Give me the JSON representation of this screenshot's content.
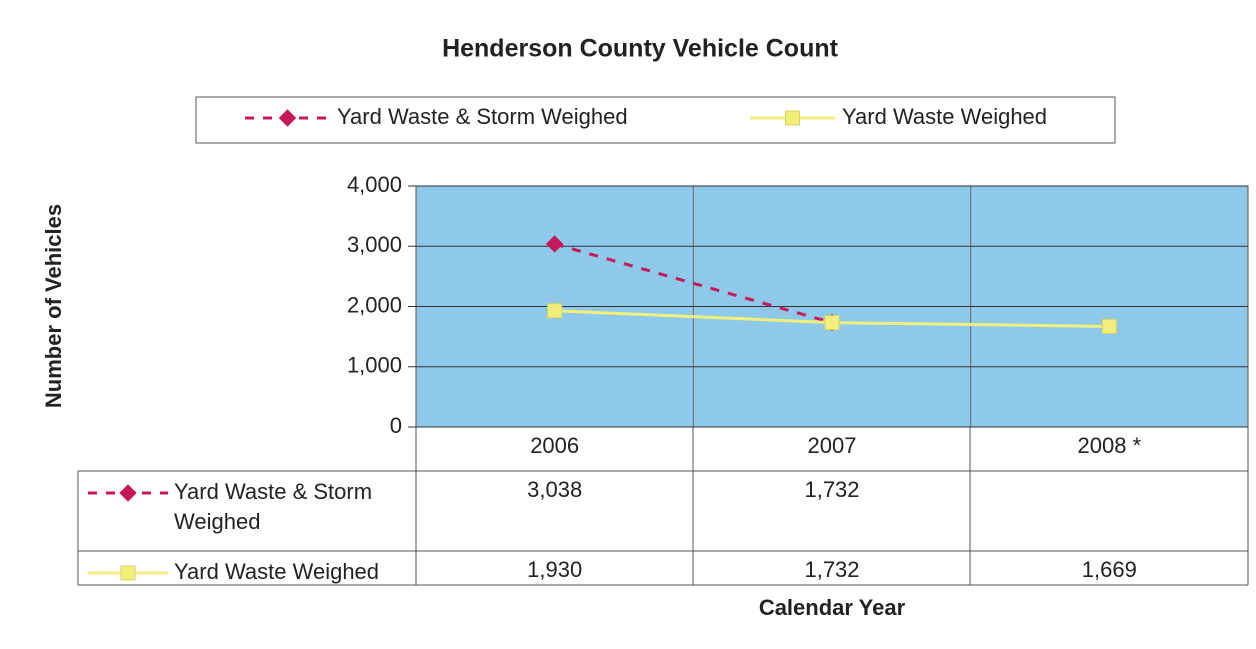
{
  "chart_data": {
    "type": "line",
    "title": "Henderson County Vehicle Count",
    "x_label": "Calendar Year",
    "y_label": "Number of Vehicles",
    "categories": [
      "2006",
      "2007",
      "2008 *"
    ],
    "series": [
      {
        "name": "Yard Waste & Storm Weighed",
        "color": "#c8185c",
        "dashed": true,
        "marker": "diamond",
        "values": [
          3038,
          1732,
          null
        ],
        "value_labels": [
          "3,038",
          "1,732",
          null
        ]
      },
      {
        "name": "Yard Waste Weighed",
        "color": "#f2ee7c",
        "dashed": false,
        "marker": "square",
        "values": [
          1930,
          1732,
          1669
        ],
        "value_labels": [
          "1,930",
          "1,732",
          "1,669"
        ]
      }
    ],
    "ylim": [
      0,
      4000
    ],
    "yticks": [
      0,
      {
        "value": 1000,
        "label": "1,000"
      },
      {
        "value": 2000,
        "label": "2,000"
      },
      {
        "value": 3000,
        "label": "3,000"
      },
      {
        "value": 4000,
        "label": "4,000"
      }
    ],
    "grid": true,
    "plot_background": "#8fc9ea"
  }
}
